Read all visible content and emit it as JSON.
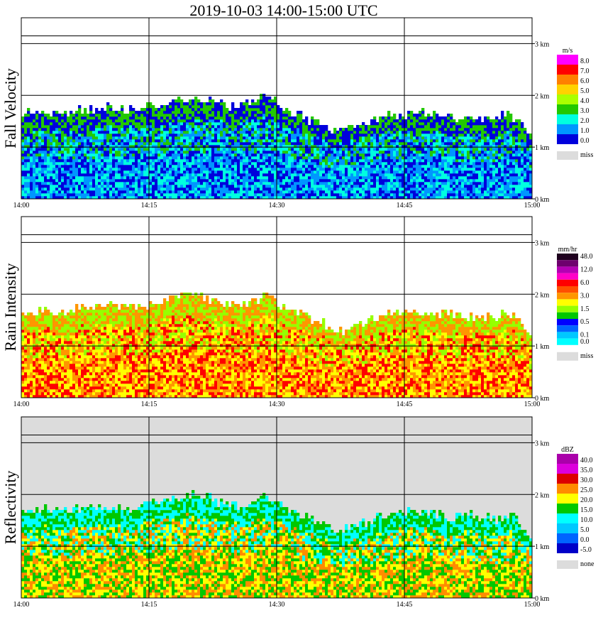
{
  "title": "2019-10-03   14:00-15:00 UTC",
  "chart_data": [
    {
      "type": "heatmap",
      "ylabel": "Fall Velocity",
      "x_ticks": [
        "14:00",
        "14:15",
        "14:30",
        "14:45",
        "15:00"
      ],
      "y_ticks": [
        "0 km",
        "1 km",
        "2 km",
        "3 km"
      ],
      "xlim": [
        "14:00",
        "15:00"
      ],
      "ylim_km": [
        0,
        3.5
      ],
      "grid": true,
      "colorbar": {
        "unit": "m/s",
        "labels": [
          "8.0",
          "7.0",
          "6.0",
          "5.0",
          "4.0",
          "3.0",
          "2.0",
          "1.0",
          "0.0"
        ],
        "colors": [
          "#ff00ff",
          "#ff0000",
          "#ff8000",
          "#ffd200",
          "#aaff00",
          "#22c800",
          "#00ffe0",
          "#0096ff",
          "#0000dc"
        ],
        "missing_label": "miss",
        "missing_color": "#dcdcdc"
      },
      "background_color": "#ffffff",
      "fill_colors": [
        "#0096ff",
        "#00ffe0",
        "#0000dc",
        "#22c800"
      ],
      "echo_top_km": [
        1.6,
        1.7,
        1.65,
        1.7,
        1.7,
        1.75,
        1.7,
        1.8,
        1.9,
        1.95,
        1.9,
        1.75,
        1.8,
        1.95,
        1.7,
        1.55,
        1.4,
        1.25,
        1.4,
        1.55,
        1.6,
        1.65,
        1.6,
        1.55,
        1.55,
        1.5,
        1.6,
        1.25
      ],
      "noise_seed": 3
    },
    {
      "type": "heatmap",
      "ylabel": "Rain Intensity",
      "x_ticks": [
        "14:00",
        "14:15",
        "14:30",
        "14:45",
        "15:00"
      ],
      "y_ticks": [
        "0 km",
        "1 km",
        "2 km",
        "3 km"
      ],
      "xlim": [
        "14:00",
        "15:00"
      ],
      "ylim_km": [
        0,
        3.5
      ],
      "grid": true,
      "colorbar": {
        "unit": "mm/hr",
        "labels": [
          "48.0",
          "",
          "12.0",
          "",
          "6.0",
          "",
          "3.0",
          "",
          "1.5",
          "",
          "0.5",
          "",
          "0.1",
          "0.0"
        ],
        "colors": [
          "#1e001e",
          "#6e006e",
          "#b400b4",
          "#ff00c8",
          "#ff0000",
          "#ff5000",
          "#ff9600",
          "#ffff00",
          "#96ff00",
          "#00c800",
          "#0000ff",
          "#0064ff",
          "#00c8ff",
          "#00ffff"
        ],
        "missing_label": "miss",
        "missing_color": "#dcdcdc"
      },
      "background_color": "#ffffff",
      "fill_colors": [
        "#ffff00",
        "#ff0000",
        "#ff9600",
        "#96ff00",
        "#00c800",
        "#0000ff",
        "#ff00c8"
      ],
      "echo_top_km": [
        1.6,
        1.7,
        1.65,
        1.7,
        1.7,
        1.75,
        1.7,
        1.8,
        1.9,
        1.95,
        1.9,
        1.75,
        1.8,
        1.95,
        1.7,
        1.55,
        1.4,
        1.25,
        1.4,
        1.55,
        1.6,
        1.65,
        1.6,
        1.55,
        1.55,
        1.5,
        1.6,
        1.25
      ],
      "noise_seed": 7
    },
    {
      "type": "heatmap",
      "ylabel": "Reflectivity",
      "x_ticks": [
        "14:00",
        "14:15",
        "14:30",
        "14:45",
        "15:00"
      ],
      "y_ticks": [
        "0 km",
        "1 km",
        "2 km",
        "3 km"
      ],
      "xlim": [
        "14:00",
        "15:00"
      ],
      "ylim_km": [
        0,
        3.5
      ],
      "grid": true,
      "colorbar": {
        "unit": "dBZ",
        "labels": [
          "40.0",
          "35.0",
          "30.0",
          "25.0",
          "20.0",
          "15.0",
          "10.0",
          "5.0",
          "0.0",
          "-5.0"
        ],
        "colors": [
          "#aa00aa",
          "#dc00dc",
          "#dc0000",
          "#ff8c00",
          "#ffff00",
          "#00c800",
          "#00ffff",
          "#00c8ff",
          "#0064ff",
          "#0000c8"
        ],
        "missing_label": "none",
        "missing_color": "#dcdcdc"
      },
      "background_color": "#dcdcdc",
      "fill_colors": [
        "#ffff00",
        "#ff8c00",
        "#00c800",
        "#00ffff",
        "#00c8ff",
        "#dc0000"
      ],
      "echo_top_km": [
        1.6,
        1.7,
        1.65,
        1.7,
        1.7,
        1.75,
        1.7,
        1.8,
        1.9,
        1.95,
        1.9,
        1.75,
        1.8,
        1.95,
        1.7,
        1.55,
        1.4,
        1.25,
        1.4,
        1.55,
        1.6,
        1.65,
        1.6,
        1.55,
        1.55,
        1.5,
        1.6,
        1.25
      ],
      "noise_seed": 11
    }
  ]
}
